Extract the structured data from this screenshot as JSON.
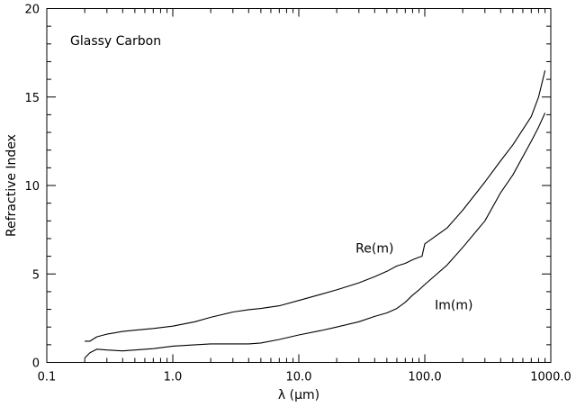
{
  "chart_data": {
    "type": "line",
    "title": "",
    "annotation": "Glassy Carbon",
    "xlabel": "λ (μm)",
    "ylabel": "Refractive Index",
    "xscale": "log",
    "xlim": [
      0.1,
      1000
    ],
    "ylim": [
      0,
      20
    ],
    "grid": false,
    "x_ticks": [
      0.1,
      1,
      10,
      100,
      1000
    ],
    "x_tick_labels": [
      "0.1",
      "1.0",
      "10.0",
      "100.0",
      "1000.0"
    ],
    "y_ticks": [
      0,
      5,
      10,
      15,
      20
    ],
    "y_tick_labels": [
      "0",
      "5",
      "10",
      "15",
      "20"
    ],
    "series": [
      {
        "name": "Re(m)",
        "x": [
          0.2,
          0.22,
          0.25,
          0.3,
          0.4,
          0.5,
          0.7,
          1.0,
          1.5,
          2.0,
          3.0,
          4.0,
          5.0,
          7.0,
          10,
          15,
          20,
          30,
          40,
          50,
          60,
          70,
          80,
          90,
          95,
          100,
          150,
          200,
          300,
          400,
          500,
          700,
          800,
          900
        ],
        "y": [
          1.2,
          1.2,
          1.45,
          1.6,
          1.75,
          1.82,
          1.92,
          2.05,
          2.3,
          2.55,
          2.85,
          2.98,
          3.05,
          3.2,
          3.5,
          3.85,
          4.1,
          4.5,
          4.85,
          5.15,
          5.45,
          5.6,
          5.8,
          5.95,
          6.0,
          6.7,
          7.6,
          8.6,
          10.2,
          11.4,
          12.3,
          13.9,
          15.0,
          16.5
        ]
      },
      {
        "name": "Im(m)",
        "x": [
          0.2,
          0.22,
          0.25,
          0.3,
          0.4,
          0.5,
          0.7,
          1.0,
          1.5,
          2.0,
          3.0,
          4.0,
          5.0,
          7.0,
          10,
          15,
          20,
          30,
          40,
          50,
          60,
          70,
          80,
          90,
          100,
          150,
          200,
          300,
          400,
          500,
          700,
          800,
          900
        ],
        "y": [
          0.25,
          0.55,
          0.75,
          0.7,
          0.65,
          0.7,
          0.78,
          0.92,
          1.0,
          1.05,
          1.05,
          1.05,
          1.1,
          1.3,
          1.55,
          1.8,
          2.0,
          2.3,
          2.6,
          2.8,
          3.05,
          3.4,
          3.8,
          4.1,
          4.4,
          5.5,
          6.5,
          8.0,
          9.6,
          10.6,
          12.5,
          13.3,
          14.1
        ]
      }
    ],
    "series_labels": [
      {
        "text": "Re(m)",
        "x": 40,
        "y": 6.2
      },
      {
        "text": "Im(m)",
        "x": 170,
        "y": 3.0
      }
    ]
  }
}
